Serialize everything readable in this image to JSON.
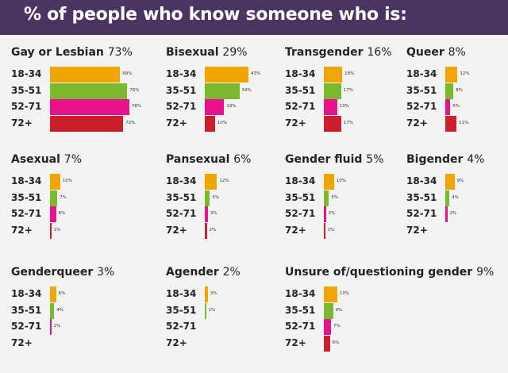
{
  "title": "% of people who know someone who is:",
  "chart_data": {
    "type": "bar",
    "categories": [
      "18-34",
      "35-51",
      "52-71",
      "72+"
    ],
    "colors": [
      "#f0a500",
      "#7ab82d",
      "#e8128c",
      "#cc1f2e"
    ],
    "panels": [
      {
        "name": "Gay or Lesbian",
        "overall": "73%",
        "values": [
          69,
          76,
          78,
          72
        ],
        "labels": [
          "69%",
          "76%",
          "78%",
          "72%"
        ]
      },
      {
        "name": "Bisexual",
        "overall": "29%",
        "values": [
          43,
          34,
          19,
          10
        ],
        "labels": [
          "43%",
          "34%",
          "19%",
          "10%"
        ]
      },
      {
        "name": "Transgender",
        "overall": "16%",
        "values": [
          18,
          17,
          13,
          17
        ],
        "labels": [
          "18%",
          "17%",
          "13%",
          "17%"
        ]
      },
      {
        "name": "Queer",
        "overall": "8%",
        "values": [
          12,
          8,
          5,
          11
        ],
        "labels": [
          "12%",
          "8%",
          "5%",
          "11%"
        ]
      },
      {
        "name": "Asexual",
        "overall": "7%",
        "values": [
          10,
          7,
          6,
          1
        ],
        "labels": [
          "10%",
          "7%",
          "6%",
          "1%"
        ]
      },
      {
        "name": "Pansexual",
        "overall": "6%",
        "values": [
          12,
          5,
          3,
          2
        ],
        "labels": [
          "12%",
          "5%",
          "3%",
          "2%"
        ]
      },
      {
        "name": "Gender fluid",
        "overall": "5%",
        "values": [
          10,
          5,
          2,
          1
        ],
        "labels": [
          "10%",
          "5%",
          "2%",
          "1%"
        ]
      },
      {
        "name": "Bigender",
        "overall": "4%",
        "values": [
          9,
          4,
          2,
          0
        ],
        "labels": [
          "9%",
          "4%",
          "2%",
          ""
        ]
      },
      {
        "name": "Genderqueer",
        "overall": "3%",
        "values": [
          6,
          4,
          1,
          0
        ],
        "labels": [
          "6%",
          "4%",
          "1%",
          ""
        ]
      },
      {
        "name": "Agender",
        "overall": "2%",
        "values": [
          3,
          1,
          0,
          0
        ],
        "labels": [
          "3%",
          "1%",
          "",
          ""
        ]
      },
      {
        "name": "Unsure of/questioning gender",
        "overall": "9%",
        "values": [
          13,
          9,
          7,
          6
        ],
        "labels": [
          "13%",
          "9%",
          "7%",
          "6%"
        ]
      }
    ]
  }
}
